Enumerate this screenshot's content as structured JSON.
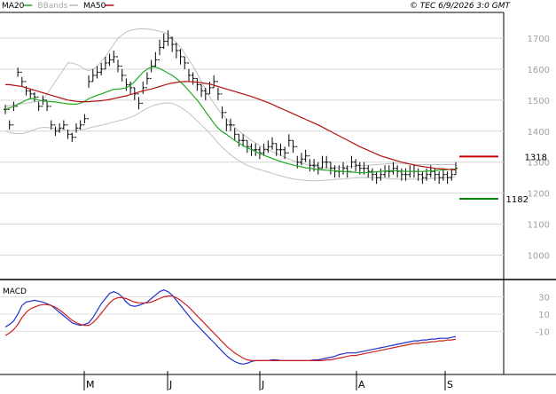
{
  "header": {
    "legend": [
      {
        "label": "MA20",
        "color": "#22aa22"
      },
      {
        "label": "BBands",
        "color": "#b8b8b8"
      },
      {
        "label": "MA50",
        "color": "#b01010"
      }
    ],
    "source": "© TEC 6/9/2026 3:0 GMT"
  },
  "chart_data": [
    {
      "type": "line",
      "title": "",
      "x_ticks": [
        "M",
        "J",
        "J",
        "A",
        "S"
      ],
      "y_ticks": [
        "1700",
        "1600",
        "1500",
        "1400",
        "1300",
        "1200",
        "1100",
        "1000"
      ],
      "ylim": [
        930,
        1760
      ],
      "grid": true,
      "markers": [
        {
          "label": "1318",
          "value": 1318,
          "color": "#cc0000"
        },
        {
          "label": "1182",
          "value": 1182,
          "color": "#008800"
        }
      ],
      "price_bars": {
        "close": [
          1470,
          1420,
          1480,
          1590,
          1560,
          1530,
          1520,
          1510,
          1480,
          1500,
          1480,
          1420,
          1400,
          1410,
          1420,
          1390,
          1380,
          1410,
          1420,
          1440,
          1560,
          1580,
          1590,
          1600,
          1620,
          1630,
          1640,
          1610,
          1580,
          1550,
          1540,
          1520,
          1490,
          1540,
          1570,
          1610,
          1630,
          1670,
          1690,
          1700,
          1680,
          1660,
          1640,
          1620,
          1580,
          1570,
          1550,
          1530,
          1520,
          1540,
          1560,
          1520,
          1460,
          1420,
          1420,
          1390,
          1370,
          1370,
          1350,
          1340,
          1340,
          1330,
          1340,
          1350,
          1360,
          1340,
          1340,
          1330,
          1370,
          1350,
          1300,
          1310,
          1320,
          1290,
          1290,
          1280,
          1300,
          1300,
          1280,
          1270,
          1270,
          1280,
          1270,
          1300,
          1290,
          1280,
          1280,
          1270,
          1260,
          1250,
          1260,
          1270,
          1270,
          1280,
          1270,
          1260,
          1260,
          1270,
          1270,
          1260,
          1250,
          1260,
          1270,
          1260,
          1250,
          1260,
          1250,
          1260,
          1280
        ],
        "range": [
          30,
          30,
          30,
          30,
          30,
          30,
          30,
          30,
          30,
          30,
          30,
          30,
          30,
          30,
          30,
          30,
          30,
          30,
          30,
          30,
          40,
          40,
          40,
          40,
          40,
          40,
          40,
          40,
          40,
          40,
          40,
          40,
          40,
          40,
          40,
          40,
          50,
          50,
          50,
          50,
          50,
          50,
          50,
          40,
          40,
          40,
          40,
          40,
          40,
          40,
          40,
          40,
          40,
          40,
          40,
          40,
          40,
          40,
          40,
          40,
          40,
          40,
          40,
          40,
          40,
          40,
          40,
          40,
          40,
          40,
          40,
          40,
          40,
          40,
          40,
          40,
          40,
          40,
          40,
          40,
          40,
          40,
          40,
          40,
          40,
          40,
          40,
          40,
          40,
          40,
          40,
          40,
          40,
          40,
          40,
          40,
          40,
          40,
          40,
          40,
          40,
          40,
          40,
          40,
          40,
          40,
          40,
          40,
          40
        ]
      },
      "series": [
        {
          "name": "MA20",
          "color": "#22aa22",
          "values": [
            1470,
            1475,
            1480,
            1487,
            1493,
            1500,
            1505,
            1505,
            1500,
            1497,
            1496,
            1495,
            1494,
            1492,
            1490,
            1488,
            1487,
            1487,
            1490,
            1496,
            1505,
            1510,
            1516,
            1520,
            1525,
            1530,
            1535,
            1536,
            1537,
            1540,
            1548,
            1560,
            1575,
            1590,
            1600,
            1606,
            1606,
            1602,
            1595,
            1587,
            1580,
            1570,
            1558,
            1545,
            1530,
            1515,
            1500,
            1482,
            1463,
            1445,
            1425,
            1410,
            1398,
            1390,
            1380,
            1370,
            1361,
            1354,
            1347,
            1340,
            1334,
            1328,
            1322,
            1317,
            1312,
            1307,
            1302,
            1298,
            1294,
            1291,
            1288,
            1285,
            1282,
            1280,
            1278,
            1276,
            1275,
            1274,
            1273,
            1272,
            1271,
            1270,
            1269,
            1268,
            1267,
            1266,
            1266,
            1267,
            1268,
            1269,
            1270,
            1271,
            1272,
            1273,
            1272,
            1271,
            1270,
            1270,
            1270,
            1270,
            1270,
            1271,
            1272,
            1273,
            1274,
            1275,
            1276,
            1277,
            1278
          ]
        },
        {
          "name": "MA50",
          "color": "#b01010",
          "values": [
            1550,
            1550,
            1548,
            1546,
            1544,
            1540,
            1536,
            1532,
            1528,
            1524,
            1520,
            1516,
            1512,
            1508,
            1504,
            1500,
            1498,
            1496,
            1495,
            1495,
            1495,
            1496,
            1497,
            1498,
            1500,
            1502,
            1505,
            1508,
            1511,
            1514,
            1518,
            1522,
            1526,
            1530,
            1533,
            1536,
            1540,
            1544,
            1548,
            1552,
            1555,
            1557,
            1559,
            1560,
            1560,
            1559,
            1558,
            1556,
            1554,
            1552,
            1548,
            1544,
            1540,
            1536,
            1532,
            1528,
            1524,
            1520,
            1516,
            1512,
            1507,
            1502,
            1497,
            1492,
            1486,
            1480,
            1474,
            1468,
            1462,
            1456,
            1450,
            1444,
            1438,
            1432,
            1426,
            1420,
            1413,
            1406,
            1399,
            1392,
            1385,
            1378,
            1371,
            1364,
            1357,
            1350,
            1344,
            1338,
            1332,
            1326,
            1320,
            1316,
            1312,
            1308,
            1304,
            1300,
            1297,
            1294,
            1291,
            1288,
            1286,
            1284,
            1282,
            1280,
            1279,
            1278,
            1277,
            1276,
            1275
          ]
        },
        {
          "name": "BB upper",
          "color": "#c0c0c0",
          "values": [
            1480,
            1482,
            1484,
            1486,
            1488,
            1490,
            1492,
            1494,
            1496,
            1500,
            1520,
            1540,
            1560,
            1580,
            1600,
            1620,
            1620,
            1615,
            1610,
            1600,
            1595,
            1600,
            1610,
            1625,
            1640,
            1660,
            1680,
            1700,
            1710,
            1720,
            1725,
            1728,
            1730,
            1730,
            1729,
            1728,
            1725,
            1722,
            1718,
            1712,
            1700,
            1685,
            1670,
            1650,
            1630,
            1610,
            1585,
            1560,
            1535,
            1510,
            1490,
            1470,
            1455,
            1440,
            1425,
            1412,
            1400,
            1390,
            1380,
            1370,
            1362,
            1354,
            1346,
            1340,
            1334,
            1328,
            1322,
            1316,
            1310,
            1305,
            1300,
            1296,
            1293,
            1290,
            1287,
            1285,
            1283,
            1282,
            1282,
            1282,
            1283,
            1284,
            1285,
            1286,
            1287,
            1288,
            1289,
            1290,
            1291,
            1292,
            1293,
            1294,
            1295,
            1296,
            1296,
            1296,
            1295,
            1294,
            1293,
            1292,
            1292,
            1292,
            1292,
            1292,
            1292,
            1292,
            1292,
            1292,
            1292
          ]
        },
        {
          "name": "BB lower",
          "color": "#c0c0c0",
          "values": [
            1400,
            1396,
            1393,
            1392,
            1392,
            1395,
            1400,
            1405,
            1410,
            1412,
            1412,
            1410,
            1408,
            1406,
            1404,
            1402,
            1402,
            1403,
            1404,
            1406,
            1410,
            1413,
            1416,
            1419,
            1422,
            1426,
            1430,
            1433,
            1436,
            1440,
            1445,
            1450,
            1458,
            1466,
            1474,
            1480,
            1485,
            1488,
            1490,
            1490,
            1490,
            1484,
            1477,
            1468,
            1458,
            1446,
            1433,
            1420,
            1407,
            1393,
            1378,
            1362,
            1348,
            1336,
            1324,
            1314,
            1305,
            1297,
            1290,
            1285,
            1280,
            1276,
            1272,
            1268,
            1264,
            1260,
            1256,
            1252,
            1249,
            1246,
            1244,
            1242,
            1241,
            1240,
            1240,
            1240,
            1241,
            1242,
            1243,
            1244,
            1245,
            1246,
            1247,
            1248,
            1249,
            1250,
            1250,
            1250,
            1250,
            1250,
            1249,
            1248,
            1247,
            1246,
            1245,
            1245,
            1245,
            1245,
            1245,
            1245,
            1245,
            1246,
            1247,
            1248,
            1249,
            1250,
            1251,
            1252,
            1253
          ]
        }
      ]
    },
    {
      "type": "line",
      "title": "MACD",
      "y_ticks": [
        "30",
        "10",
        "-10"
      ],
      "ylim": [
        -60,
        47
      ],
      "grid": true,
      "series": [
        {
          "name": "MACD",
          "color": "#2030cc",
          "values": [
            -5,
            -2,
            2,
            10,
            20,
            24,
            25,
            26,
            25,
            24,
            22,
            20,
            16,
            12,
            8,
            4,
            0,
            -2,
            -3,
            -2,
            0,
            6,
            14,
            22,
            28,
            34,
            36,
            34,
            30,
            24,
            20,
            19,
            20,
            22,
            24,
            28,
            32,
            36,
            38,
            36,
            32,
            26,
            20,
            14,
            8,
            2,
            -3,
            -8,
            -13,
            -18,
            -23,
            -28,
            -33,
            -38,
            -42,
            -45,
            -47,
            -48,
            -47,
            -45,
            -44,
            -44,
            -44,
            -44,
            -43,
            -43,
            -44,
            -44,
            -44,
            -44,
            -44,
            -44,
            -44,
            -44,
            -43,
            -43,
            -42,
            -41,
            -40,
            -39,
            -37,
            -36,
            -35,
            -35,
            -35,
            -34,
            -33,
            -32,
            -31,
            -30,
            -29,
            -28,
            -27,
            -26,
            -25,
            -24,
            -23,
            -22,
            -21,
            -21,
            -20,
            -20,
            -19,
            -19,
            -18,
            -18,
            -18,
            -17,
            -16
          ]
        },
        {
          "name": "Signal",
          "color": "#cc2020",
          "values": [
            -15,
            -12,
            -8,
            -2,
            6,
            12,
            16,
            18,
            20,
            21,
            21,
            20,
            18,
            15,
            11,
            7,
            3,
            0,
            -2,
            -3,
            -3,
            0,
            5,
            11,
            17,
            23,
            27,
            29,
            29,
            28,
            26,
            24,
            23,
            23,
            23,
            24,
            26,
            28,
            30,
            31,
            31,
            29,
            26,
            22,
            18,
            13,
            8,
            3,
            -2,
            -7,
            -12,
            -17,
            -22,
            -27,
            -31,
            -35,
            -38,
            -41,
            -43,
            -44,
            -44,
            -44,
            -44,
            -44,
            -44,
            -44,
            -44,
            -44,
            -44,
            -44,
            -44,
            -44,
            -44,
            -44,
            -44,
            -44,
            -44,
            -43,
            -43,
            -42,
            -41,
            -40,
            -39,
            -38,
            -38,
            -37,
            -36,
            -35,
            -34,
            -33,
            -32,
            -31,
            -30,
            -29,
            -28,
            -27,
            -26,
            -25,
            -24,
            -24,
            -23,
            -23,
            -22,
            -22,
            -21,
            -21,
            -20,
            -20,
            -19
          ]
        }
      ]
    }
  ]
}
